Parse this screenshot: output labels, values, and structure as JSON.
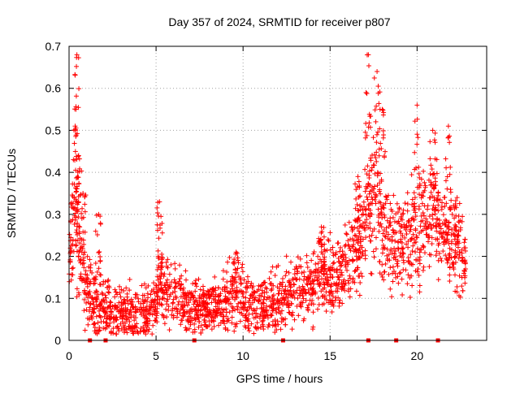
{
  "chart_data": {
    "type": "scatter",
    "title": "Day 357 of 2024, SRMTID for receiver p807",
    "xlabel": "GPS time / hours",
    "ylabel": "SRMTID / TECUs",
    "xlim": [
      0,
      24
    ],
    "ylim": [
      0,
      0.7
    ],
    "xticks": [
      0,
      5,
      10,
      15,
      20
    ],
    "yticks": [
      0,
      0.1,
      0.2,
      0.3,
      0.4,
      0.5,
      0.6,
      0.7
    ],
    "grid": true,
    "marker": "+",
    "series": [
      {
        "name": "SRMTID",
        "color": "#ff0000",
        "profile_x": [
          0,
          0.1,
          0.2,
          0.3,
          0.4,
          0.5,
          0.7,
          0.9,
          1.2,
          1.6,
          2.0,
          2.5,
          3.0,
          3.5,
          4.0,
          4.5,
          5.0,
          5.2,
          5.5,
          6.0,
          6.5,
          7.0,
          7.5,
          8.0,
          9.0,
          9.5,
          10.0,
          10.5,
          11.0,
          11.5,
          12.0,
          12.5,
          13.0,
          13.5,
          14.0,
          14.5,
          15.0,
          15.5,
          16.0,
          16.5,
          17.0,
          17.3,
          17.6,
          18.0,
          18.5,
          19.0,
          19.5,
          20.0,
          20.5,
          21.0,
          21.5,
          22.0,
          22.5,
          22.8
        ],
        "profile_y": [
          0.21,
          0.24,
          0.27,
          0.3,
          0.29,
          0.25,
          0.18,
          0.13,
          0.11,
          0.09,
          0.08,
          0.07,
          0.07,
          0.06,
          0.06,
          0.07,
          0.07,
          0.16,
          0.12,
          0.1,
          0.09,
          0.08,
          0.08,
          0.08,
          0.09,
          0.1,
          0.1,
          0.09,
          0.08,
          0.08,
          0.09,
          0.11,
          0.12,
          0.13,
          0.13,
          0.15,
          0.15,
          0.16,
          0.19,
          0.22,
          0.27,
          0.32,
          0.33,
          0.27,
          0.25,
          0.23,
          0.24,
          0.26,
          0.28,
          0.29,
          0.25,
          0.22,
          0.19,
          0.17
        ],
        "spread": 0.045,
        "peaks": [
          {
            "x": 0.45,
            "y": 0.68
          },
          {
            "x": 0.35,
            "y": 0.51
          },
          {
            "x": 0.55,
            "y": 0.44
          },
          {
            "x": 0.8,
            "y": 0.35
          },
          {
            "x": 1.7,
            "y": 0.3
          },
          {
            "x": 5.2,
            "y": 0.33
          },
          {
            "x": 9.6,
            "y": 0.21
          },
          {
            "x": 14.5,
            "y": 0.27
          },
          {
            "x": 16.6,
            "y": 0.39
          },
          {
            "x": 17.2,
            "y": 0.68
          },
          {
            "x": 17.7,
            "y": 0.64
          },
          {
            "x": 18.0,
            "y": 0.55
          },
          {
            "x": 20.0,
            "y": 0.56
          },
          {
            "x": 20.9,
            "y": 0.5
          },
          {
            "x": 21.8,
            "y": 0.51
          },
          {
            "x": 22.3,
            "y": 0.34
          }
        ],
        "num_points": 2200,
        "x_range": [
          0,
          22.8
        ]
      }
    ],
    "zero_markers": [
      1.2,
      2.1,
      7.2,
      12.3,
      17.2,
      18.8,
      21.2
    ]
  }
}
